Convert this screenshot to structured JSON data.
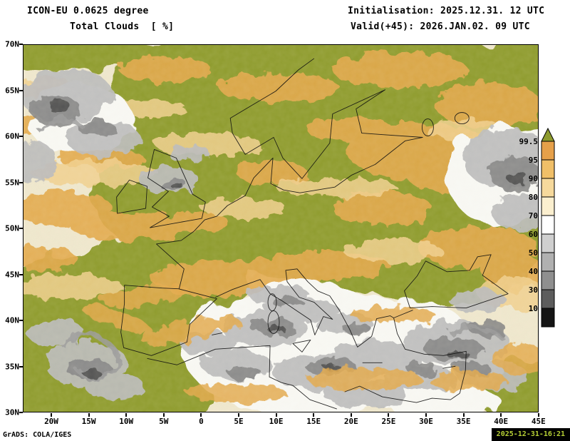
{
  "header": {
    "model_line": "ICON-EU 0.0625 degree",
    "variable_line": "Total Clouds  [ %]",
    "init_line": "Initialisation: 2025.12.31. 12 UTC",
    "valid_line": "Valid(+45): 2026.JAN.02. 09 UTC"
  },
  "map": {
    "lat_ticks": [
      "70N",
      "65N",
      "60N",
      "55N",
      "50N",
      "45N",
      "40N",
      "35N",
      "30N"
    ],
    "lon_ticks": [
      "20W",
      "15W",
      "10W",
      "5W",
      "0",
      "5E",
      "10E",
      "15E",
      "20E",
      "25E",
      "30E",
      "35E",
      "40E",
      "45E"
    ]
  },
  "colorbar": {
    "unit": "%",
    "labels": [
      "99.5",
      "95",
      "90",
      "80",
      "70",
      "60",
      "50",
      "40",
      "30",
      "10"
    ],
    "colors": [
      "#8e9b2e",
      "#e6a04a",
      "#f0bf68",
      "#f6d99c",
      "#fbefcf",
      "#ffffff",
      "#cfcfcf",
      "#b0b0b0",
      "#8f8f8f",
      "#5c5c5c",
      "#141414"
    ]
  },
  "footer": {
    "credit": "GrADS: COLA/IGES",
    "timestamp": "2025-12-31-16:21"
  }
}
